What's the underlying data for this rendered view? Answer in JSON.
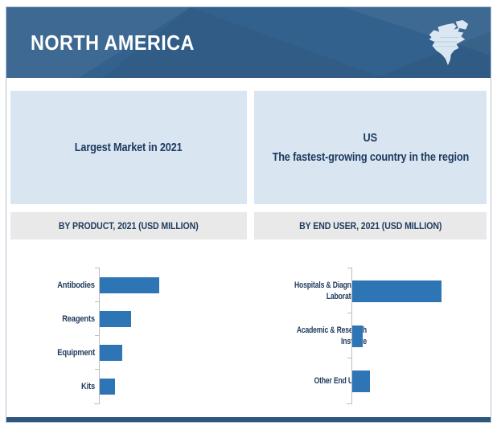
{
  "header": {
    "title": "NORTH AMERICA",
    "map_icon": "north-america-map-icon"
  },
  "cards": {
    "left": {
      "text": "Largest Market in 2021"
    },
    "right": {
      "title": "US",
      "subtitle": "The fastest-growing country in the region"
    }
  },
  "sections": {
    "left": {
      "title": "BY PRODUCT, 2021 (USD MILLION)"
    },
    "right": {
      "title": "BY END USER, 2021 (USD MILLION)"
    }
  },
  "colors": {
    "banner_blue": "#33618D",
    "card_background": "#D9E5F1",
    "section_header_background": "#E9E9E9",
    "bar_blue": "#2E75B6",
    "text_navy": "#1E3A5E",
    "footer_bar": "#2E567C"
  },
  "chart_data": [
    {
      "type": "bar",
      "orientation": "horizontal",
      "title": "BY PRODUCT, 2021 (USD MILLION)",
      "categories": [
        "Antibodies",
        "Reagents",
        "Equipment",
        "Kits"
      ],
      "values": [
        100,
        53,
        38,
        26
      ],
      "value_axis_labels_shown": false,
      "note": "No numeric axis or data labels shown; values are relative bar lengths as % of the longest bar",
      "legend": "none",
      "grid": false
    },
    {
      "type": "bar",
      "orientation": "horizontal",
      "title": "BY END USER, 2021 (USD MILLION)",
      "categories": [
        "Hospitals & Diagnostic Laboratories",
        "Academic & Research Institute",
        "Other End Users"
      ],
      "values": [
        100,
        12,
        20
      ],
      "value_axis_labels_shown": false,
      "note": "No numeric axis or data labels shown; values are relative bar lengths as % of the longest bar",
      "legend": "none",
      "grid": false
    }
  ]
}
